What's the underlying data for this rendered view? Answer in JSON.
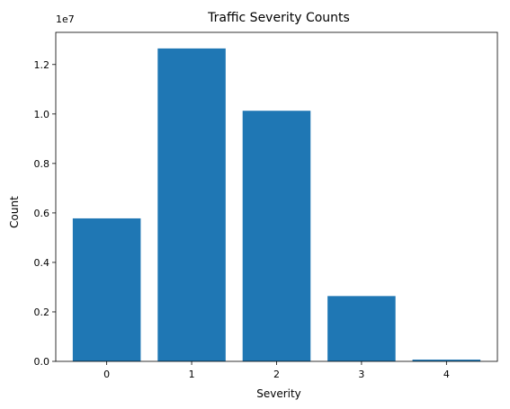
{
  "chart_data": {
    "type": "bar",
    "title": "Traffic Severity Counts",
    "xlabel": "Severity",
    "ylabel": "Count",
    "y_scale_label": "1e7",
    "categories": [
      "0",
      "1",
      "2",
      "3",
      "4"
    ],
    "values": [
      5780000,
      12650000,
      10130000,
      2640000,
      70000
    ],
    "ylim": [
      0,
      13300000
    ],
    "y_ticks": [
      0,
      2000000,
      4000000,
      6000000,
      8000000,
      10000000,
      12000000
    ],
    "y_tick_labels": [
      "0.0",
      "0.2",
      "0.4",
      "0.6",
      "0.8",
      "1.0",
      "1.2"
    ],
    "bar_color": "#1f77b4",
    "grid": false,
    "legend": "none"
  }
}
